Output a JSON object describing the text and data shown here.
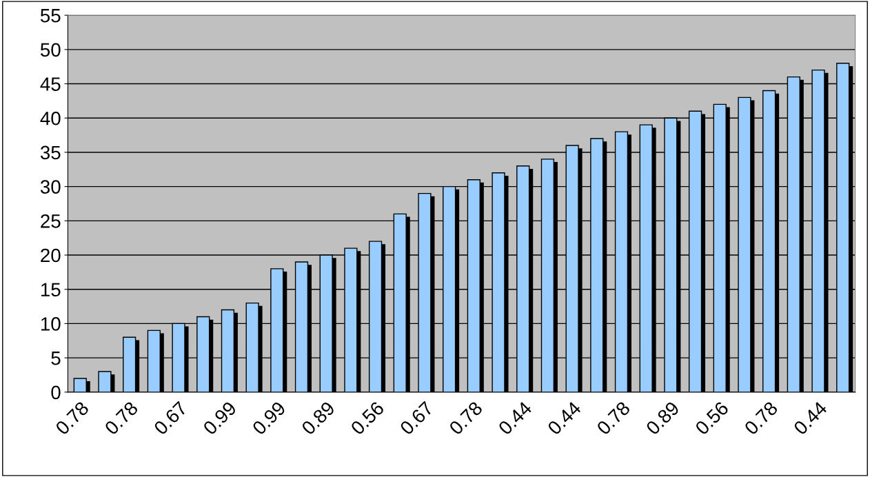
{
  "chart_data": {
    "type": "bar",
    "categories": [
      "0.78",
      null,
      "0.78",
      null,
      "0.67",
      null,
      "0.99",
      null,
      "0.99",
      null,
      "0.89",
      null,
      "0.56",
      null,
      "0.67",
      null,
      "0.78",
      null,
      "0.44",
      null,
      "0.44",
      null,
      "0.78",
      null,
      "0.89",
      null,
      "0.56",
      null,
      "0.78",
      null,
      "0.44",
      null
    ],
    "values": [
      2,
      3,
      8,
      9,
      10,
      11,
      12,
      13,
      18,
      19,
      20,
      21,
      22,
      26,
      29,
      30,
      31,
      32,
      33,
      34,
      36,
      37,
      38,
      39,
      40,
      41,
      42,
      43,
      44,
      46,
      47,
      48
    ],
    "color": "#99ccff",
    "ylim": [
      0,
      55
    ],
    "yticks": [
      0,
      5,
      10,
      15,
      20,
      25,
      30,
      35,
      40,
      45,
      50,
      55
    ],
    "grid": "y"
  }
}
